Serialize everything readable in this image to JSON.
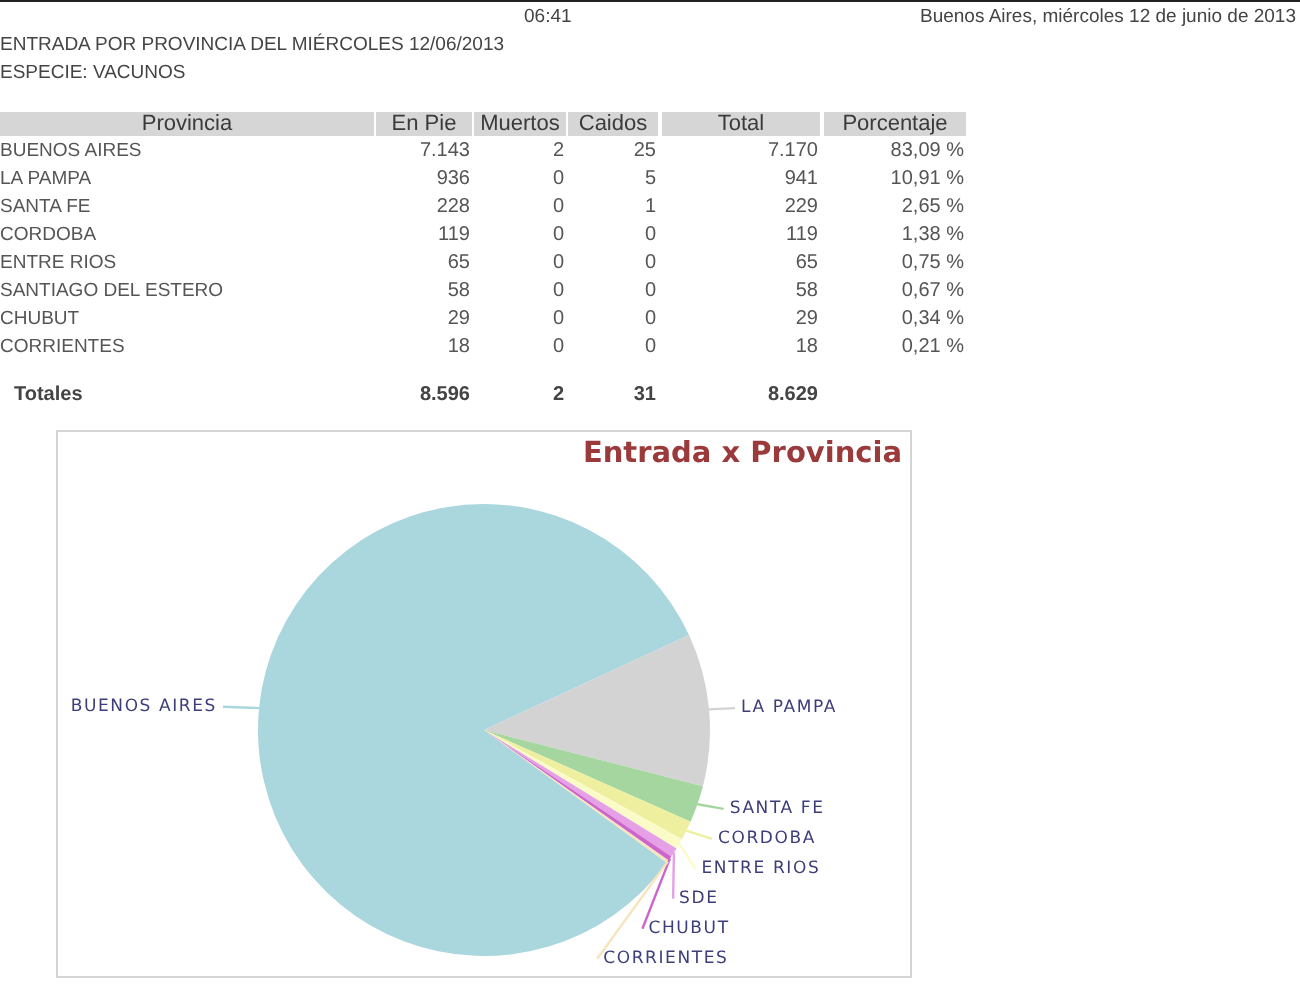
{
  "chart_data": [
    {
      "type": "other",
      "title": "ENTRADA POR PROVINCIA DEL MIÉRCOLES 12/06/2013",
      "subtitle": "ESPECIE: VACUNOS",
      "annotations": [
        "06:41",
        "Buenos Aires, miércoles 12 de junio de 2013"
      ],
      "xlabel": "Provincia",
      "categories": [
        "BUENOS AIRES",
        "LA PAMPA",
        "SANTA FE",
        "CORDOBA",
        "ENTRE RIOS",
        "SANTIAGO DEL ESTERO",
        "CHUBUT",
        "CORRIENTES",
        "Totales"
      ],
      "series": [
        {
          "name": "En Pie",
          "values": [
            7143,
            936,
            228,
            119,
            65,
            58,
            29,
            18,
            8596
          ],
          "value_labels": [
            "7.143",
            "936",
            "228",
            "119",
            "65",
            "58",
            "29",
            "18",
            "8.596"
          ]
        },
        {
          "name": "Muertos",
          "values": [
            2,
            0,
            0,
            0,
            0,
            0,
            0,
            0,
            2
          ],
          "value_labels": [
            "2",
            "0",
            "0",
            "0",
            "0",
            "0",
            "0",
            "0",
            "2"
          ]
        },
        {
          "name": "Caidos",
          "values": [
            25,
            5,
            1,
            0,
            0,
            0,
            0,
            0,
            31
          ],
          "value_labels": [
            "25",
            "5",
            "1",
            "0",
            "0",
            "0",
            "0",
            "0",
            "31"
          ]
        },
        {
          "name": "Total",
          "values": [
            7170,
            941,
            229,
            119,
            65,
            58,
            29,
            18,
            8629
          ],
          "value_labels": [
            "7.170",
            "941",
            "229",
            "119",
            "65",
            "58",
            "29",
            "18",
            "8.629"
          ]
        },
        {
          "name": "Porcentaje",
          "values": [
            83.09,
            10.91,
            2.65,
            1.38,
            0.75,
            0.67,
            0.34,
            0.21,
            null
          ],
          "value_labels": [
            "83,09 %",
            "10,91 %",
            "2,65 %",
            "1,38 %",
            "0,75 %",
            "0,67 %",
            "0,34 %",
            "0,21 %",
            null
          ]
        }
      ]
    },
    {
      "type": "pie",
      "title": "Entrada x Provincia",
      "categories": [
        "BUENOS AIRES",
        "LA PAMPA",
        "SANTA FE",
        "CORDOBA",
        "ENTRE RIOS",
        "SDE",
        "CHUBUT",
        "CORRIENTES"
      ],
      "values": [
        83.09,
        10.91,
        2.65,
        1.38,
        0.75,
        0.67,
        0.34,
        0.21
      ],
      "colors": [
        "#aad6dd",
        "#d3d3d3",
        "#a6d6a0",
        "#eef0a0",
        "#fbfbc8",
        "#e6a0e6",
        "#cc66cc",
        "#f8e4bc"
      ]
    }
  ]
}
